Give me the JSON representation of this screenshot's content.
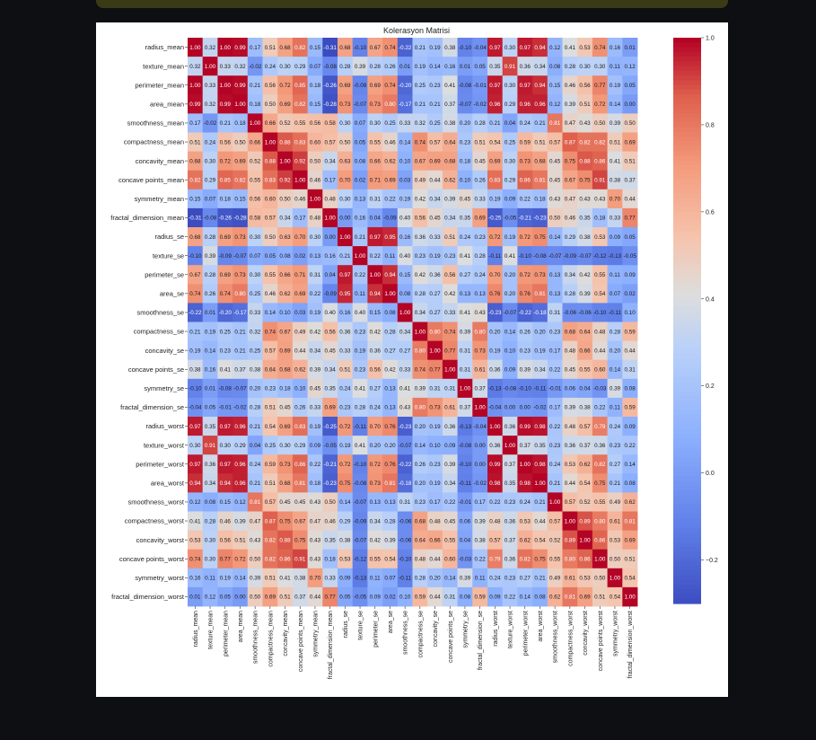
{
  "chart_data": {
    "type": "heatmap",
    "title": "Kolerasyon Matrisi",
    "labels": [
      "radius_mean",
      "texture_mean",
      "perimeter_mean",
      "area_mean",
      "smoothness_mean",
      "compactness_mean",
      "concavity_mean",
      "concave points_mean",
      "symmetry_mean",
      "fractal_dimension_mean",
      "radius_se",
      "texture_se",
      "perimeter_se",
      "area_se",
      "smoothness_se",
      "compactness_se",
      "concavity_se",
      "concave points_se",
      "symmetry_se",
      "fractal_dimension_se",
      "radius_worst",
      "texture_worst",
      "perimeter_worst",
      "area_worst",
      "smoothness_worst",
      "compactness_worst",
      "concavity_worst",
      "concave points_worst",
      "symmetry_worst",
      "fractal_dimension_worst"
    ],
    "matrix": [
      [
        1.0,
        0.32,
        1.0,
        0.99,
        0.17,
        0.51,
        0.68,
        0.82,
        0.15,
        -0.31,
        0.68,
        -0.1,
        0.67,
        0.74,
        -0.22,
        0.21,
        0.19,
        0.38,
        -0.1,
        -0.04,
        0.97,
        0.3,
        0.97,
        0.94,
        0.12,
        0.41,
        0.53,
        0.74,
        0.16,
        0.01
      ],
      [
        0.32,
        1.0,
        0.33,
        0.32,
        -0.02,
        0.24,
        0.3,
        0.29,
        0.07,
        -0.08,
        0.28,
        0.39,
        0.28,
        0.26,
        0.01,
        0.19,
        0.14,
        0.16,
        0.01,
        0.05,
        0.35,
        0.91,
        0.36,
        0.34,
        0.08,
        0.28,
        0.3,
        0.3,
        0.11,
        0.12
      ],
      [
        1.0,
        0.33,
        1.0,
        0.99,
        0.21,
        0.56,
        0.72,
        0.85,
        0.18,
        -0.26,
        0.69,
        -0.09,
        0.69,
        0.74,
        -0.2,
        0.25,
        0.23,
        0.41,
        -0.08,
        -0.01,
        0.97,
        0.3,
        0.97,
        0.94,
        0.15,
        0.46,
        0.56,
        0.77,
        0.19,
        0.05
      ],
      [
        0.99,
        0.32,
        0.99,
        1.0,
        0.18,
        0.5,
        0.69,
        0.82,
        0.15,
        -0.28,
        0.73,
        -0.07,
        0.73,
        0.8,
        -0.17,
        0.21,
        0.21,
        0.37,
        -0.07,
        -0.02,
        0.96,
        0.29,
        0.96,
        0.96,
        0.12,
        0.39,
        0.51,
        0.72,
        0.14,
        0.0
      ],
      [
        0.17,
        -0.02,
        0.21,
        0.18,
        1.0,
        0.66,
        0.52,
        0.55,
        0.56,
        0.58,
        0.3,
        0.07,
        0.3,
        0.25,
        0.33,
        0.32,
        0.25,
        0.38,
        0.2,
        0.28,
        0.21,
        0.04,
        0.24,
        0.21,
        0.81,
        0.47,
        0.43,
        0.5,
        0.39,
        0.5
      ],
      [
        0.51,
        0.24,
        0.56,
        0.5,
        0.66,
        1.0,
        0.88,
        0.83,
        0.6,
        0.57,
        0.5,
        0.05,
        0.55,
        0.46,
        0.14,
        0.74,
        0.57,
        0.64,
        0.23,
        0.51,
        0.54,
        0.25,
        0.59,
        0.51,
        0.57,
        0.87,
        0.82,
        0.82,
        0.51,
        0.69
      ],
      [
        0.68,
        0.3,
        0.72,
        0.69,
        0.52,
        0.88,
        1.0,
        0.92,
        0.5,
        0.34,
        0.63,
        0.08,
        0.66,
        0.62,
        0.1,
        0.67,
        0.69,
        0.68,
        0.18,
        0.45,
        0.69,
        0.3,
        0.73,
        0.68,
        0.45,
        0.75,
        0.88,
        0.86,
        0.41,
        0.51
      ],
      [
        0.82,
        0.29,
        0.85,
        0.82,
        0.55,
        0.83,
        0.92,
        1.0,
        0.46,
        0.17,
        0.7,
        0.02,
        0.71,
        0.69,
        0.03,
        0.49,
        0.44,
        0.62,
        0.1,
        0.26,
        0.83,
        0.29,
        0.86,
        0.81,
        0.45,
        0.67,
        0.75,
        0.91,
        0.38,
        0.37
      ],
      [
        0.15,
        0.07,
        0.18,
        0.15,
        0.56,
        0.6,
        0.5,
        0.46,
        1.0,
        0.48,
        0.3,
        0.13,
        0.31,
        0.22,
        0.19,
        0.42,
        0.34,
        0.39,
        0.45,
        0.33,
        0.19,
        0.09,
        0.22,
        0.18,
        0.43,
        0.47,
        0.43,
        0.43,
        0.7,
        0.44
      ],
      [
        -0.31,
        -0.08,
        -0.26,
        -0.28,
        0.58,
        0.57,
        0.34,
        0.17,
        0.48,
        1.0,
        0.0,
        0.16,
        0.04,
        -0.09,
        0.4,
        0.56,
        0.45,
        0.34,
        0.35,
        0.69,
        -0.25,
        -0.05,
        -0.21,
        -0.23,
        0.5,
        0.46,
        0.35,
        0.18,
        0.33,
        0.77
      ],
      [
        0.68,
        0.28,
        0.69,
        0.73,
        0.3,
        0.5,
        0.63,
        0.7,
        0.3,
        0.0,
        1.0,
        0.21,
        0.97,
        0.95,
        0.16,
        0.36,
        0.33,
        0.51,
        0.24,
        0.23,
        0.72,
        0.19,
        0.72,
        0.75,
        0.14,
        0.29,
        0.38,
        0.53,
        0.09,
        0.05
      ],
      [
        -0.1,
        0.39,
        -0.09,
        -0.07,
        0.07,
        0.05,
        0.08,
        0.02,
        0.13,
        0.16,
        0.21,
        1.0,
        0.22,
        0.11,
        0.4,
        0.23,
        0.19,
        0.23,
        0.41,
        0.28,
        -0.11,
        0.41,
        -0.1,
        -0.08,
        -0.07,
        -0.09,
        -0.07,
        -0.12,
        -0.13,
        -0.05
      ],
      [
        0.67,
        0.28,
        0.69,
        0.73,
        0.3,
        0.55,
        0.66,
        0.71,
        0.31,
        0.04,
        0.97,
        0.22,
        1.0,
        0.94,
        0.15,
        0.42,
        0.36,
        0.56,
        0.27,
        0.24,
        0.7,
        0.2,
        0.72,
        0.73,
        0.13,
        0.34,
        0.42,
        0.55,
        0.11,
        0.09
      ],
      [
        0.74,
        0.26,
        0.74,
        0.8,
        0.25,
        0.46,
        0.62,
        0.69,
        0.22,
        -0.09,
        0.95,
        0.11,
        0.94,
        1.0,
        0.08,
        0.28,
        0.27,
        0.42,
        0.13,
        0.13,
        0.76,
        0.2,
        0.76,
        0.81,
        0.13,
        0.28,
        0.39,
        0.54,
        0.07,
        0.02
      ],
      [
        -0.22,
        0.01,
        -0.2,
        -0.17,
        0.33,
        0.14,
        0.1,
        0.03,
        0.19,
        0.4,
        0.16,
        0.4,
        0.15,
        0.08,
        1.0,
        0.34,
        0.27,
        0.33,
        0.41,
        0.43,
        -0.23,
        -0.07,
        -0.22,
        -0.18,
        0.31,
        -0.06,
        -0.06,
        -0.1,
        -0.11,
        0.1
      ],
      [
        0.21,
        0.19,
        0.25,
        0.21,
        0.32,
        0.74,
        0.67,
        0.49,
        0.42,
        0.56,
        0.36,
        0.23,
        0.42,
        0.28,
        0.34,
        1.0,
        0.8,
        0.74,
        0.39,
        0.8,
        0.2,
        0.14,
        0.26,
        0.2,
        0.23,
        0.68,
        0.64,
        0.48,
        0.28,
        0.59
      ],
      [
        0.19,
        0.14,
        0.23,
        0.21,
        0.25,
        0.57,
        0.69,
        0.44,
        0.34,
        0.45,
        0.33,
        0.19,
        0.36,
        0.27,
        0.27,
        0.8,
        1.0,
        0.77,
        0.31,
        0.73,
        0.19,
        0.1,
        0.23,
        0.19,
        0.17,
        0.48,
        0.66,
        0.44,
        0.2,
        0.44
      ],
      [
        0.38,
        0.16,
        0.41,
        0.37,
        0.38,
        0.64,
        0.68,
        0.62,
        0.39,
        0.34,
        0.51,
        0.23,
        0.56,
        0.42,
        0.33,
        0.74,
        0.77,
        1.0,
        0.31,
        0.61,
        0.36,
        0.09,
        0.39,
        0.34,
        0.22,
        0.45,
        0.55,
        0.6,
        0.14,
        0.31
      ],
      [
        -0.1,
        0.01,
        -0.08,
        -0.07,
        0.2,
        0.23,
        0.18,
        0.1,
        0.45,
        0.35,
        0.24,
        0.41,
        0.27,
        0.13,
        0.41,
        0.39,
        0.31,
        0.31,
        1.0,
        0.37,
        -0.13,
        -0.08,
        -0.1,
        -0.11,
        -0.01,
        0.06,
        0.04,
        -0.03,
        0.39,
        0.08
      ],
      [
        -0.04,
        0.05,
        -0.01,
        -0.02,
        0.28,
        0.51,
        0.45,
        0.26,
        0.33,
        0.69,
        0.23,
        0.28,
        0.24,
        0.13,
        0.43,
        0.8,
        0.73,
        0.61,
        0.37,
        1.0,
        -0.04,
        -0.0,
        -0.0,
        -0.02,
        0.17,
        0.39,
        0.38,
        0.22,
        0.11,
        0.59
      ],
      [
        0.97,
        0.35,
        0.97,
        0.96,
        0.21,
        0.54,
        0.69,
        0.83,
        0.19,
        -0.25,
        0.72,
        -0.11,
        0.7,
        0.76,
        -0.23,
        0.2,
        0.19,
        0.36,
        -0.13,
        -0.04,
        1.0,
        0.36,
        0.99,
        0.98,
        0.22,
        0.48,
        0.57,
        0.79,
        0.24,
        0.09
      ],
      [
        0.3,
        0.91,
        0.3,
        0.29,
        0.04,
        0.25,
        0.3,
        0.29,
        0.09,
        -0.05,
        0.19,
        0.41,
        0.2,
        0.2,
        -0.07,
        0.14,
        0.1,
        0.09,
        -0.08,
        -0.0,
        0.36,
        1.0,
        0.37,
        0.35,
        0.23,
        0.36,
        0.37,
        0.36,
        0.23,
        0.22
      ],
      [
        0.97,
        0.36,
        0.97,
        0.96,
        0.24,
        0.59,
        0.73,
        0.86,
        0.22,
        -0.21,
        0.72,
        -0.1,
        0.72,
        0.76,
        -0.22,
        0.26,
        0.23,
        0.39,
        -0.1,
        -0.0,
        0.99,
        0.37,
        1.0,
        0.98,
        0.24,
        0.53,
        0.62,
        0.82,
        0.27,
        0.14
      ],
      [
        0.94,
        0.34,
        0.94,
        0.96,
        0.21,
        0.51,
        0.68,
        0.81,
        0.18,
        -0.23,
        0.75,
        -0.08,
        0.73,
        0.81,
        -0.18,
        0.2,
        0.19,
        0.34,
        -0.11,
        -0.02,
        0.98,
        0.35,
        0.98,
        1.0,
        0.21,
        0.44,
        0.54,
        0.75,
        0.21,
        0.08
      ],
      [
        0.12,
        0.08,
        0.15,
        0.12,
        0.81,
        0.57,
        0.45,
        0.45,
        0.43,
        0.5,
        0.14,
        -0.07,
        0.13,
        0.13,
        0.31,
        0.23,
        0.17,
        0.22,
        -0.01,
        0.17,
        0.22,
        0.23,
        0.24,
        0.21,
        1.0,
        0.57,
        0.52,
        0.55,
        0.49,
        0.62
      ],
      [
        0.41,
        0.28,
        0.46,
        0.39,
        0.47,
        0.87,
        0.75,
        0.67,
        0.47,
        0.46,
        0.29,
        -0.09,
        0.34,
        0.28,
        -0.06,
        0.68,
        0.48,
        0.45,
        0.06,
        0.39,
        0.48,
        0.36,
        0.53,
        0.44,
        0.57,
        1.0,
        0.89,
        0.8,
        0.61,
        0.81
      ],
      [
        0.53,
        0.3,
        0.56,
        0.51,
        0.43,
        0.82,
        0.88,
        0.75,
        0.43,
        0.35,
        0.38,
        -0.07,
        0.42,
        0.39,
        -0.06,
        0.64,
        0.66,
        0.55,
        0.04,
        0.38,
        0.57,
        0.37,
        0.62,
        0.54,
        0.52,
        0.89,
        1.0,
        0.86,
        0.53,
        0.69
      ],
      [
        0.74,
        0.3,
        0.77,
        0.72,
        0.5,
        0.82,
        0.86,
        0.91,
        0.43,
        0.18,
        0.53,
        -0.12,
        0.55,
        0.54,
        -0.1,
        0.48,
        0.44,
        0.6,
        -0.03,
        0.22,
        0.79,
        0.36,
        0.82,
        0.75,
        0.55,
        0.8,
        0.86,
        1.0,
        0.5,
        0.51
      ],
      [
        0.16,
        0.11,
        0.19,
        0.14,
        0.39,
        0.51,
        0.41,
        0.38,
        0.7,
        0.33,
        0.09,
        -0.13,
        0.11,
        0.07,
        -0.11,
        0.28,
        0.2,
        0.14,
        0.39,
        0.11,
        0.24,
        0.23,
        0.27,
        0.21,
        0.49,
        0.61,
        0.53,
        0.5,
        1.0,
        0.54
      ],
      [
        0.01,
        0.12,
        0.05,
        0.0,
        0.5,
        0.69,
        0.51,
        0.37,
        0.44,
        0.77,
        0.05,
        -0.05,
        0.09,
        0.02,
        0.1,
        0.59,
        0.44,
        0.31,
        0.08,
        0.59,
        0.09,
        0.22,
        0.14,
        0.08,
        0.62,
        0.81,
        0.69,
        0.51,
        0.54,
        1.0
      ]
    ],
    "vmin": -0.3,
    "vmax": 1.0,
    "colormap": "coolwarm",
    "colorbar_ticks": [
      1.0,
      0.8,
      0.6,
      0.4,
      0.2,
      0.0,
      -0.2
    ],
    "colorbar_tick_labels": [
      "1.0",
      "0.8",
      "0.6",
      "0.4",
      "0.2",
      "0.0",
      "−0.2"
    ]
  }
}
